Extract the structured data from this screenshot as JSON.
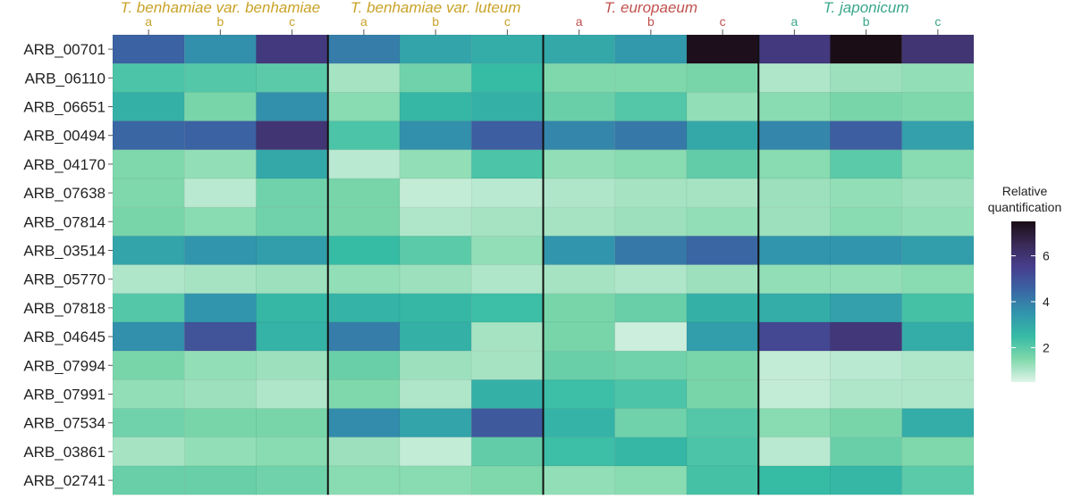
{
  "chart_data": {
    "type": "heatmap",
    "title": "",
    "groups": [
      {
        "name": "T. benhamiae var. benhamiae",
        "color": "#c9a227",
        "replicates": [
          "a",
          "b",
          "c"
        ]
      },
      {
        "name": "T. benhamiae var. luteum",
        "color": "#c9a227",
        "replicates": [
          "a",
          "b",
          "c"
        ]
      },
      {
        "name": "T. europaeum",
        "color": "#c0504d",
        "replicates": [
          "a",
          "b",
          "c"
        ]
      },
      {
        "name": "T. japonicum",
        "color": "#3aa68a",
        "replicates": [
          "a",
          "b",
          "c"
        ]
      }
    ],
    "rows": [
      "ARB_00701",
      "ARB_06110",
      "ARB_06651",
      "ARB_00494",
      "ARB_04170",
      "ARB_07638",
      "ARB_07814",
      "ARB_03514",
      "ARB_05770",
      "ARB_07818",
      "ARB_04645",
      "ARB_07994",
      "ARB_07991",
      "ARB_07534",
      "ARB_03861",
      "ARB_02741"
    ],
    "values": [
      [
        4.6,
        3.6,
        5.8,
        4.0,
        3.1,
        2.9,
        3.0,
        3.4,
        7.4,
        5.8,
        7.5,
        6.0
      ],
      [
        2.2,
        2.1,
        2.0,
        1.1,
        1.7,
        2.5,
        1.5,
        1.5,
        1.6,
        1.0,
        1.2,
        1.3
      ],
      [
        2.8,
        1.6,
        3.6,
        1.4,
        2.6,
        2.8,
        1.8,
        2.1,
        1.3,
        1.4,
        1.6,
        1.5
      ],
      [
        4.5,
        4.6,
        6.0,
        2.2,
        3.6,
        4.7,
        3.8,
        4.1,
        3.0,
        3.8,
        4.7,
        3.2
      ],
      [
        1.5,
        1.3,
        3.0,
        0.9,
        1.3,
        2.2,
        1.3,
        1.4,
        1.9,
        1.4,
        2.0,
        1.4
      ],
      [
        1.5,
        0.9,
        1.7,
        1.6,
        0.8,
        0.9,
        1.0,
        1.1,
        1.1,
        1.2,
        1.3,
        1.2
      ],
      [
        1.6,
        1.4,
        1.7,
        1.6,
        1.0,
        1.1,
        1.1,
        1.2,
        1.3,
        1.2,
        1.4,
        1.3
      ],
      [
        3.1,
        3.5,
        3.3,
        2.5,
        2.0,
        1.3,
        3.5,
        4.1,
        4.5,
        3.5,
        3.5,
        3.3
      ],
      [
        1.0,
        1.1,
        1.2,
        1.3,
        1.2,
        1.0,
        1.1,
        1.0,
        1.2,
        1.3,
        1.3,
        1.4
      ],
      [
        2.1,
        3.5,
        2.6,
        2.7,
        2.6,
        2.4,
        1.6,
        1.8,
        2.8,
        2.9,
        3.2,
        2.3
      ],
      [
        3.6,
        5.0,
        2.7,
        4.0,
        2.8,
        1.1,
        1.6,
        0.7,
        3.3,
        5.3,
        5.9,
        2.9
      ],
      [
        1.6,
        1.3,
        1.2,
        1.8,
        1.2,
        1.1,
        1.8,
        1.7,
        1.6,
        0.8,
        0.9,
        1.0
      ],
      [
        1.3,
        1.2,
        1.0,
        1.5,
        1.0,
        2.8,
        2.4,
        2.2,
        1.6,
        0.8,
        1.0,
        1.0
      ],
      [
        1.7,
        1.6,
        1.6,
        3.7,
        3.1,
        4.8,
        2.7,
        1.7,
        2.1,
        1.4,
        1.6,
        2.9
      ],
      [
        1.1,
        1.3,
        1.4,
        1.2,
        0.8,
        1.9,
        2.4,
        2.6,
        2.2,
        0.9,
        1.8,
        1.5
      ],
      [
        1.8,
        1.8,
        1.7,
        1.4,
        1.4,
        1.5,
        1.3,
        1.4,
        2.3,
        2.5,
        2.6,
        2.0
      ]
    ],
    "colorbar": {
      "title": "Relative quantification",
      "title_lines": [
        "Relative",
        "quantification"
      ],
      "range": [
        0.5,
        7.5
      ],
      "ticks": [
        2,
        4,
        6
      ],
      "tick_labels": [
        "2",
        "4",
        "6"
      ],
      "stops": [
        "#dff4e8",
        "#7fd8ab",
        "#36bba5",
        "#3195ad",
        "#3a66a4",
        "#473f8e",
        "#3a2a57",
        "#1a0d16"
      ]
    },
    "legend_placement": "right",
    "grid": false
  }
}
